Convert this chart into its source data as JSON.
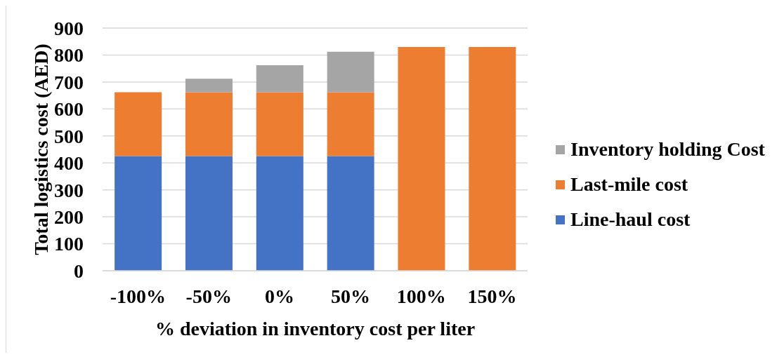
{
  "chart_data": {
    "type": "bar",
    "stacked": true,
    "xlabel": "% deviation in inventory cost per liter",
    "ylabel": "Total logistics cost (AED)",
    "categories": [
      "-100%",
      "-50%",
      "0%",
      "50%",
      "100%",
      "150%"
    ],
    "series": [
      {
        "name": "Line-haul cost",
        "color": "#4472c4",
        "values": [
          425,
          425,
          425,
          425,
          null,
          null
        ]
      },
      {
        "name": "Last-mile cost",
        "color": "#ed7d31",
        "values": [
          237,
          237,
          237,
          237,
          830,
          830
        ]
      },
      {
        "name": "Inventory holding Cost",
        "color": "#a5a5a5",
        "values": [
          null,
          50,
          100,
          150,
          null,
          null
        ]
      }
    ],
    "ylim": [
      0,
      900
    ],
    "yticks": [
      0,
      100,
      200,
      300,
      400,
      500,
      600,
      700,
      800,
      900
    ],
    "grid": "y",
    "legend": "right"
  }
}
